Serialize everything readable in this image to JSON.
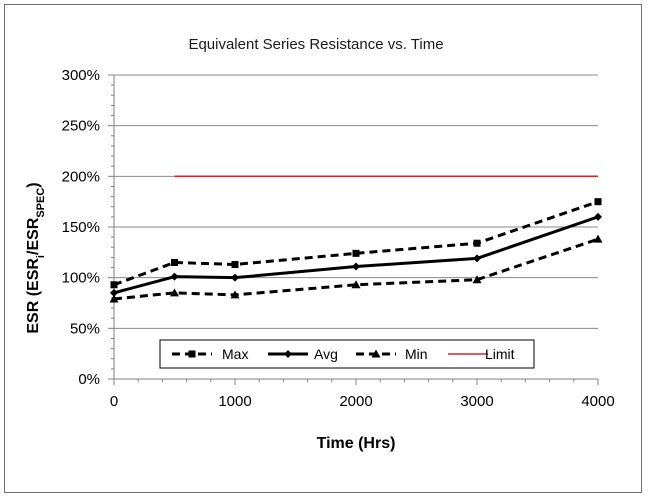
{
  "chart_data": {
    "type": "line",
    "title": "Equivalent Series Resistance vs. Time",
    "xlabel": "Time (Hrs)",
    "ylabel": "ESR (ESRi/ESRSPEC)",
    "ylabel_parts": {
      "main": "ESR (ESR",
      "sub1": "i",
      "sep": "/ESR",
      "sub2": "SPEC",
      "close": ")"
    },
    "xlim": [
      0,
      4000
    ],
    "ylim": [
      0,
      300
    ],
    "x_ticks": [
      0,
      1000,
      2000,
      3000,
      4000
    ],
    "x_tick_labels": [
      "0",
      "1000",
      "2000",
      "3000",
      "4000"
    ],
    "y_ticks": [
      0,
      50,
      100,
      150,
      200,
      250,
      300
    ],
    "y_tick_labels": [
      "0%",
      "50%",
      "100%",
      "150%",
      "200%",
      "250%",
      "300%"
    ],
    "grid": "horizontal",
    "legend_position": "bottom-inside",
    "series": [
      {
        "name": "Max",
        "style": "dashed",
        "marker": "square",
        "color": "#000000",
        "x": [
          0,
          500,
          1000,
          2000,
          3000,
          4000
        ],
        "y": [
          93,
          115,
          113,
          124,
          134,
          175
        ]
      },
      {
        "name": "Avg",
        "style": "solid",
        "marker": "diamond",
        "color": "#000000",
        "x": [
          0,
          500,
          1000,
          2000,
          3000,
          4000
        ],
        "y": [
          85,
          101,
          100,
          111,
          119,
          160
        ]
      },
      {
        "name": "Min",
        "style": "dashed",
        "marker": "triangle",
        "color": "#000000",
        "x": [
          0,
          500,
          1000,
          2000,
          3000,
          4000
        ],
        "y": [
          79,
          85,
          83,
          93,
          98,
          138
        ]
      },
      {
        "name": "Limit",
        "style": "solid",
        "marker": "none",
        "color": "#e02020",
        "x": [
          500,
          4000
        ],
        "y": [
          200,
          200
        ]
      }
    ]
  }
}
